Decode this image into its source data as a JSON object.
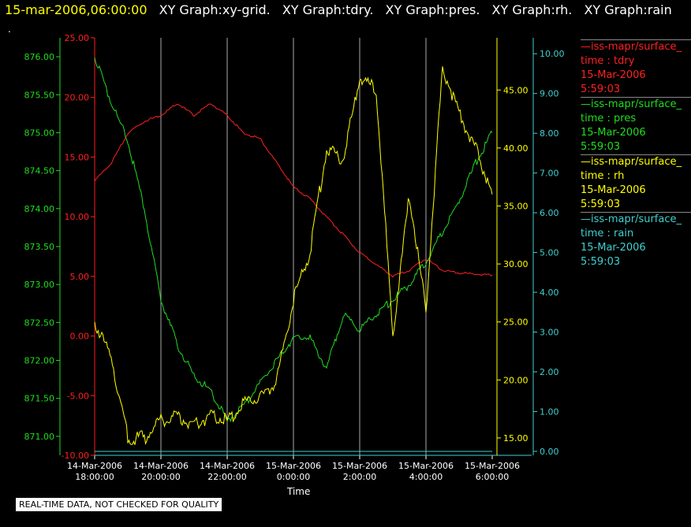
{
  "header": {
    "timestamp": "15-mar-2006,06:00:00",
    "graphs": [
      "XY Graph:xy-grid.",
      "XY Graph:tdry.",
      "XY Graph:pres.",
      "XY Graph:rh.",
      "XY Graph:rain"
    ],
    "dot": "."
  },
  "footer_note": "REAL-TIME DATA, NOT CHECKED FOR QUALITY",
  "colors": {
    "tdry": "#ff2020",
    "pres": "#20dd20",
    "rh": "#ffff00",
    "rain": "#40d0d0",
    "grid": "#aaaaaa"
  },
  "legend": [
    {
      "name": "—iss-mapr/surface_",
      "field": "time : tdry",
      "date": "15-Mar-2006",
      "time": "5:59:03",
      "color": "#ff2020"
    },
    {
      "name": "—iss-mapr/surface_",
      "field": "time : pres",
      "date": "15-Mar-2006",
      "time": "5:59:03",
      "color": "#20dd20"
    },
    {
      "name": "—iss-mapr/surface_",
      "field": "time : rh",
      "date": "15-Mar-2006",
      "time": "5:59:03",
      "color": "#ffff00"
    },
    {
      "name": "—iss-mapr/surface_",
      "field": "time : rain",
      "date": "15-Mar-2006",
      "time": "5:59:03",
      "color": "#40d0d0"
    }
  ],
  "chart_data": {
    "type": "line",
    "xlabel": "Time",
    "x_ticks": [
      {
        "date": "14-Mar-2006",
        "time": "18:00:00"
      },
      {
        "date": "14-Mar-2006",
        "time": "20:00:00"
      },
      {
        "date": "14-Mar-2006",
        "time": "22:00:00"
      },
      {
        "date": "15-Mar-2006",
        "time": "0:00:00"
      },
      {
        "date": "15-Mar-2006",
        "time": "2:00:00"
      },
      {
        "date": "15-Mar-2006",
        "time": "4:00:00"
      },
      {
        "date": "15-Mar-2006",
        "time": "6:00:00"
      }
    ],
    "xlim": [
      "2006-03-14 18:00",
      "2006-03-15 06:00"
    ],
    "grid": true,
    "axes": {
      "pres": {
        "ylim": [
          870.75,
          876.25
        ],
        "ticks": [
          "871.00",
          "871.50",
          "872.00",
          "872.50",
          "873.00",
          "873.50",
          "874.00",
          "874.50",
          "875.00",
          "875.50",
          "876.00"
        ],
        "side": "left"
      },
      "tdry": {
        "ylim": [
          -10,
          25
        ],
        "ticks": [
          "-10.00",
          "-5.00",
          "0.00",
          "5.00",
          "10.00",
          "15.00",
          "20.00",
          "25.00"
        ],
        "side": "left"
      },
      "rh": {
        "ylim": [
          13.5,
          49.5
        ],
        "ticks": [
          "15.00",
          "20.00",
          "25.00",
          "30.00",
          "35.00",
          "40.00",
          "45.00"
        ],
        "side": "right"
      },
      "rain": {
        "ylim": [
          -0.1,
          10.4
        ],
        "ticks": [
          "0.00",
          "1.00",
          "2.00",
          "3.00",
          "4.00",
          "5.00",
          "6.00",
          "7.00",
          "8.00",
          "9.00",
          "10.00"
        ],
        "side": "right"
      }
    },
    "series": [
      {
        "name": "tdry",
        "x": [
          "2006-03-14 18:00",
          "2006-03-14 18:30",
          "2006-03-14 19:00",
          "2006-03-14 19:30",
          "2006-03-14 20:00",
          "2006-03-14 20:30",
          "2006-03-14 21:00",
          "2006-03-14 21:30",
          "2006-03-14 22:00",
          "2006-03-14 22:30",
          "2006-03-14 23:00",
          "2006-03-14 23:30",
          "2006-03-15 00:00",
          "2006-03-15 00:30",
          "2006-03-15 01:00",
          "2006-03-15 01:30",
          "2006-03-15 02:00",
          "2006-03-15 02:30",
          "2006-03-15 03:00",
          "2006-03-15 03:30",
          "2006-03-15 04:00",
          "2006-03-15 04:30",
          "2006-03-15 05:00",
          "2006-03-15 05:30",
          "2006-03-15 06:00"
        ],
        "values": [
          13,
          14.5,
          17,
          18,
          18.5,
          19.5,
          18.5,
          19.5,
          18.5,
          17,
          16.5,
          14.5,
          12.5,
          11.5,
          10,
          8.5,
          7,
          6,
          5,
          5.5,
          6.5,
          5.5,
          5.3,
          5.2,
          5.1
        ]
      },
      {
        "name": "pres",
        "x": [
          "2006-03-14 18:00",
          "2006-03-14 18:30",
          "2006-03-14 19:00",
          "2006-03-14 19:30",
          "2006-03-14 20:00",
          "2006-03-14 20:30",
          "2006-03-14 21:00",
          "2006-03-14 21:30",
          "2006-03-14 22:00",
          "2006-03-14 22:30",
          "2006-03-14 23:00",
          "2006-03-14 23:30",
          "2006-03-15 00:00",
          "2006-03-15 00:30",
          "2006-03-15 01:00",
          "2006-03-15 01:30",
          "2006-03-15 02:00",
          "2006-03-15 02:30",
          "2006-03-15 03:00",
          "2006-03-15 03:30",
          "2006-03-15 04:00",
          "2006-03-15 04:30",
          "2006-03-15 05:00",
          "2006-03-15 05:30",
          "2006-03-15 06:00"
        ],
        "values": [
          876.0,
          875.4,
          874.9,
          874.0,
          872.8,
          872.2,
          871.8,
          871.6,
          871.2,
          871.4,
          871.7,
          872.0,
          872.3,
          872.3,
          871.9,
          872.6,
          872.4,
          872.6,
          872.8,
          873.0,
          873.3,
          873.7,
          874.1,
          874.6,
          875.0
        ]
      },
      {
        "name": "rh",
        "x": [
          "2006-03-14 18:00",
          "2006-03-14 18:30",
          "2006-03-14 19:00",
          "2006-03-14 19:30",
          "2006-03-14 20:00",
          "2006-03-14 20:30",
          "2006-03-14 21:00",
          "2006-03-14 21:30",
          "2006-03-14 22:00",
          "2006-03-14 22:30",
          "2006-03-14 23:00",
          "2006-03-14 23:30",
          "2006-03-15 00:00",
          "2006-03-15 00:30",
          "2006-03-15 01:00",
          "2006-03-15 01:30",
          "2006-03-15 02:00",
          "2006-03-15 02:30",
          "2006-03-15 03:00",
          "2006-03-15 03:30",
          "2006-03-15 04:00",
          "2006-03-15 04:30",
          "2006-03-15 05:00",
          "2006-03-15 05:30",
          "2006-03-15 06:00"
        ],
        "values": [
          25,
          22,
          15,
          15,
          16.5,
          17,
          16,
          17,
          16.5,
          18,
          18.5,
          20,
          27,
          31,
          40,
          39,
          46,
          45,
          24,
          36,
          26,
          47,
          43,
          40,
          36
        ]
      },
      {
        "name": "rain",
        "x": [
          "2006-03-14 18:00",
          "2006-03-15 06:00"
        ],
        "values": [
          0,
          0
        ]
      }
    ]
  }
}
